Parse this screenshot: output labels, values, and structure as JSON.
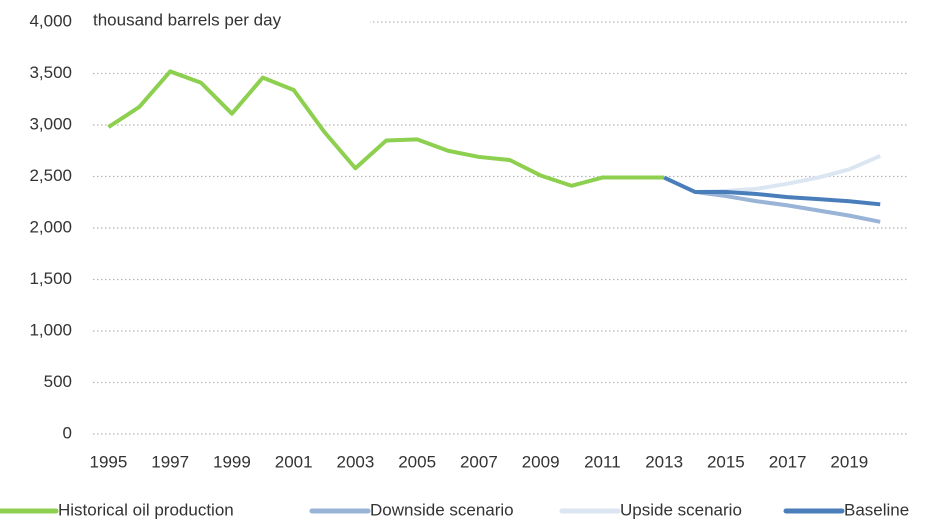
{
  "chart_data": {
    "type": "line",
    "y_axis_label": "thousand barrels per day",
    "x": [
      1995,
      1996,
      1997,
      1998,
      1999,
      2000,
      2001,
      2002,
      2003,
      2004,
      2005,
      2006,
      2007,
      2008,
      2009,
      2010,
      2011,
      2012,
      2013,
      2014,
      2015,
      2016,
      2017,
      2018,
      2019,
      2020
    ],
    "series": [
      {
        "name": "Historical oil production",
        "color": "#8dcf4e",
        "values": [
          2980,
          3175,
          3520,
          3410,
          3110,
          3460,
          3340,
          2930,
          2580,
          2850,
          2860,
          2750,
          2690,
          2660,
          2510,
          2410,
          2490,
          2490,
          2490,
          null,
          null,
          null,
          null,
          null,
          null,
          null
        ]
      },
      {
        "name": "Downside scenario",
        "color": "#99b4d7",
        "values": [
          null,
          null,
          null,
          null,
          null,
          null,
          null,
          null,
          null,
          null,
          null,
          null,
          null,
          null,
          null,
          null,
          null,
          null,
          null,
          2350,
          2310,
          2260,
          2220,
          2170,
          2120,
          2060
        ]
      },
      {
        "name": "Upside scenario",
        "color": "#dce6f2",
        "values": [
          null,
          null,
          null,
          null,
          null,
          null,
          null,
          null,
          null,
          null,
          null,
          null,
          null,
          null,
          null,
          null,
          null,
          null,
          null,
          2350,
          2360,
          2380,
          2430,
          2490,
          2570,
          2700
        ]
      },
      {
        "name": "Baseline",
        "color": "#4a7ebb",
        "values": [
          null,
          null,
          null,
          null,
          null,
          null,
          null,
          null,
          null,
          null,
          null,
          null,
          null,
          null,
          null,
          null,
          null,
          null,
          2490,
          2350,
          2350,
          2330,
          2300,
          2280,
          2260,
          2230
        ]
      }
    ],
    "xlim": [
      1994.5,
      2020.9
    ],
    "xticks": [
      1995,
      1997,
      1999,
      2001,
      2003,
      2005,
      2007,
      2009,
      2011,
      2013,
      2015,
      2017,
      2019
    ],
    "ylim": [
      0,
      4000
    ],
    "yticks": [
      0,
      500,
      {
        "value": 1000,
        "label": "1,000"
      },
      {
        "value": 1500,
        "label": "1,500"
      },
      {
        "value": 2000,
        "label": "2,000"
      },
      {
        "value": 2500,
        "label": "2,500"
      },
      {
        "value": 3000,
        "label": "3,000"
      },
      {
        "value": 3500,
        "label": "3,500"
      },
      {
        "value": 4000,
        "label": "4,000"
      }
    ],
    "grid": true,
    "legend": "bottom"
  }
}
